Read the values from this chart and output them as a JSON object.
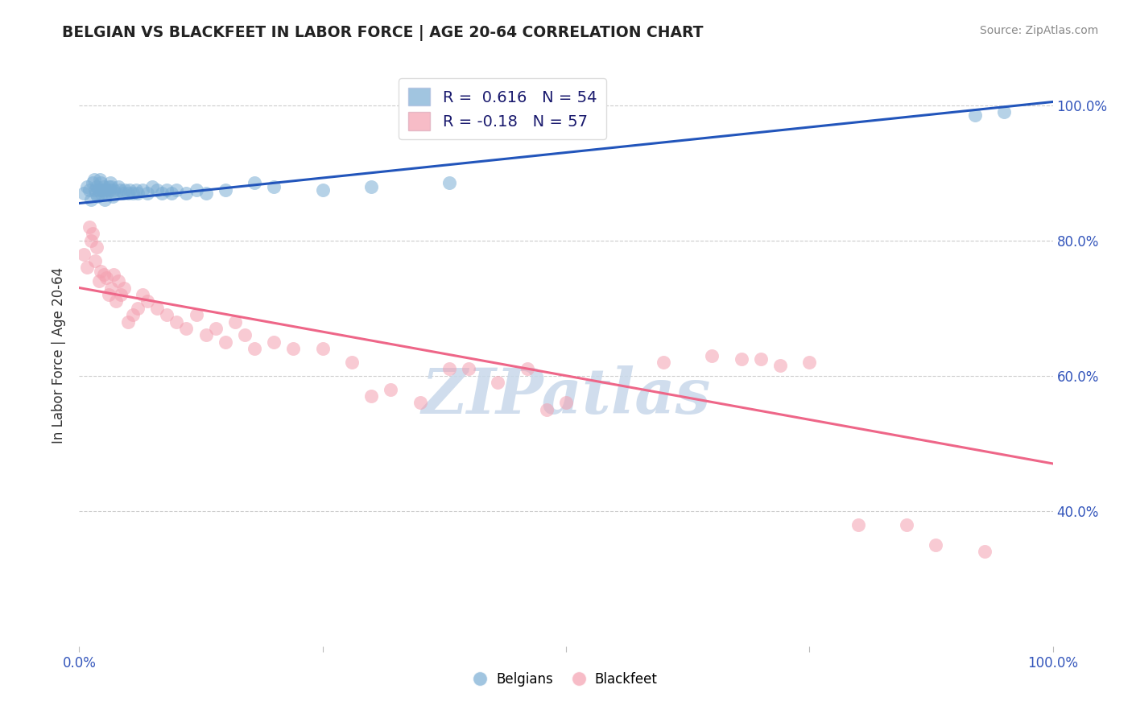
{
  "title": "BELGIAN VS BLACKFEET IN LABOR FORCE | AGE 20-64 CORRELATION CHART",
  "source": "Source: ZipAtlas.com",
  "ylabel": "In Labor Force | Age 20-64",
  "xlim": [
    0.0,
    1.0
  ],
  "ylim": [
    0.2,
    1.06
  ],
  "yticks": [
    0.4,
    0.6,
    0.8,
    1.0
  ],
  "ytick_labels": [
    "40.0%",
    "60.0%",
    "80.0%",
    "100.0%"
  ],
  "xticks": [
    0.0,
    0.25,
    0.5,
    0.75,
    1.0
  ],
  "xtick_labels": [
    "0.0%",
    "",
    "",
    "",
    "100.0%"
  ],
  "belgian_R": 0.616,
  "belgian_N": 54,
  "blackfeet_R": -0.18,
  "blackfeet_N": 57,
  "belgian_color": "#7aadd4",
  "blackfeet_color": "#f4a0b0",
  "belgian_line_color": "#2255bb",
  "blackfeet_line_color": "#ee6688",
  "background_color": "#ffffff",
  "watermark": "ZIPatlas",
  "watermark_color": "#c8d8ea",
  "belgian_x": [
    0.005,
    0.008,
    0.01,
    0.012,
    0.014,
    0.015,
    0.016,
    0.017,
    0.018,
    0.019,
    0.02,
    0.021,
    0.022,
    0.023,
    0.024,
    0.025,
    0.026,
    0.027,
    0.028,
    0.03,
    0.031,
    0.032,
    0.033,
    0.034,
    0.035,
    0.038,
    0.04,
    0.042,
    0.045,
    0.047,
    0.05,
    0.052,
    0.055,
    0.058,
    0.06,
    0.065,
    0.07,
    0.075,
    0.08,
    0.085,
    0.09,
    0.095,
    0.1,
    0.11,
    0.12,
    0.13,
    0.15,
    0.18,
    0.2,
    0.25,
    0.3,
    0.38,
    0.92,
    0.95
  ],
  "belgian_y": [
    0.87,
    0.88,
    0.875,
    0.86,
    0.885,
    0.89,
    0.875,
    0.87,
    0.88,
    0.865,
    0.875,
    0.89,
    0.885,
    0.87,
    0.875,
    0.88,
    0.86,
    0.875,
    0.87,
    0.88,
    0.875,
    0.885,
    0.88,
    0.865,
    0.875,
    0.87,
    0.88,
    0.875,
    0.87,
    0.875,
    0.87,
    0.875,
    0.87,
    0.875,
    0.87,
    0.875,
    0.87,
    0.88,
    0.875,
    0.87,
    0.875,
    0.87,
    0.875,
    0.87,
    0.875,
    0.87,
    0.875,
    0.885,
    0.88,
    0.875,
    0.88,
    0.885,
    0.985,
    0.99
  ],
  "blackfeet_x": [
    0.005,
    0.008,
    0.01,
    0.012,
    0.014,
    0.016,
    0.018,
    0.02,
    0.022,
    0.025,
    0.028,
    0.03,
    0.033,
    0.035,
    0.038,
    0.04,
    0.043,
    0.046,
    0.05,
    0.055,
    0.06,
    0.065,
    0.07,
    0.08,
    0.09,
    0.1,
    0.11,
    0.12,
    0.13,
    0.14,
    0.15,
    0.16,
    0.17,
    0.18,
    0.2,
    0.22,
    0.25,
    0.28,
    0.3,
    0.32,
    0.35,
    0.38,
    0.4,
    0.43,
    0.46,
    0.48,
    0.5,
    0.6,
    0.65,
    0.68,
    0.7,
    0.72,
    0.75,
    0.8,
    0.85,
    0.88,
    0.93
  ],
  "blackfeet_y": [
    0.78,
    0.76,
    0.82,
    0.8,
    0.81,
    0.77,
    0.79,
    0.74,
    0.755,
    0.75,
    0.745,
    0.72,
    0.73,
    0.75,
    0.71,
    0.74,
    0.72,
    0.73,
    0.68,
    0.69,
    0.7,
    0.72,
    0.71,
    0.7,
    0.69,
    0.68,
    0.67,
    0.69,
    0.66,
    0.67,
    0.65,
    0.68,
    0.66,
    0.64,
    0.65,
    0.64,
    0.64,
    0.62,
    0.57,
    0.58,
    0.56,
    0.61,
    0.61,
    0.59,
    0.61,
    0.55,
    0.56,
    0.62,
    0.63,
    0.625,
    0.625,
    0.615,
    0.62,
    0.38,
    0.38,
    0.35,
    0.34
  ]
}
